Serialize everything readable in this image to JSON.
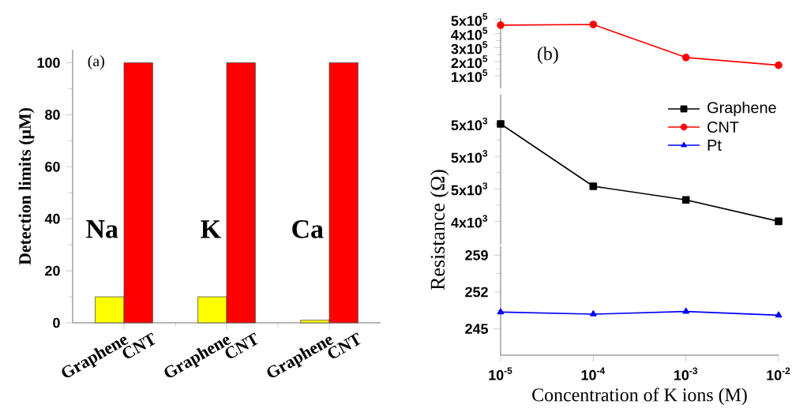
{
  "chart_data": [
    {
      "type": "bar",
      "categories": [
        "Na",
        "K",
        "Ca"
      ],
      "series": [
        {
          "name": "Graphene",
          "color": "#ffff00",
          "values": [
            10,
            10,
            1
          ]
        },
        {
          "name": "CNT",
          "color": "#ff0000",
          "values": [
            100,
            100,
            100
          ]
        }
      ],
      "ylabel": "Detection limits (μM)",
      "ylim": [
        0,
        105
      ],
      "yticks": [
        0,
        20,
        40,
        60,
        80,
        100
      ],
      "annotations": [
        "(a)"
      ]
    },
    {
      "type": "line",
      "x": [
        1e-05,
        0.0001,
        0.001,
        0.01
      ],
      "series": [
        {
          "name": "CNT",
          "color": "#ff0000",
          "values": [
            460000,
            465000,
            230000,
            175000
          ]
        }
      ],
      "marker": "circle",
      "log": "x",
      "xlim": [
        1e-05,
        0.01
      ],
      "ylim": [
        10000,
        510000
      ],
      "yticks": [
        {
          "value": 100000,
          "label": "1x10$^{5}$"
        },
        {
          "value": 200000,
          "label": "2x10$^{5}$"
        },
        {
          "value": 300000,
          "label": "3x10$^{5}$"
        },
        {
          "value": 400000,
          "label": "4x10$^{5}$"
        },
        {
          "value": 500000,
          "label": "5x10$^{5}$"
        }
      ],
      "tick_labels": "y",
      "annotations": [
        "(b)"
      ]
    },
    {
      "type": "line",
      "x": [
        1e-05,
        0.0001,
        0.001,
        0.01
      ],
      "series": [
        {
          "name": "Graphene",
          "color": "#000000",
          "values": [
            5500,
            4540,
            4330,
            4000
          ]
        }
      ],
      "marker": "square",
      "log": "x",
      "xlim": [
        1e-05,
        0.01
      ],
      "ylim": [
        3640,
        5950
      ],
      "yticks": [
        {
          "value": 4000,
          "label": "4x10$^{3}$"
        },
        {
          "value": 4500,
          "label": "5x10$^{3}$"
        },
        {
          "value": 5000,
          "label": "5x10$^{3}$"
        },
        {
          "value": 5500,
          "label": "5x10$^{3}$"
        }
      ],
      "tick_labels": "y",
      "ylabel": "Resistance (Ω)",
      "legend": "top right"
    },
    {
      "type": "line",
      "x": [
        1e-05,
        0.0001,
        0.001,
        0.01
      ],
      "series": [
        {
          "name": "Pt",
          "color": "#0000ff",
          "values": [
            248.2,
            247.8,
            248.3,
            247.6
          ]
        }
      ],
      "marker": "triangle",
      "log": "x",
      "xlim": [
        1e-05,
        0.01
      ],
      "xticks": [
        {
          "value": 1e-05,
          "label": "10$^{-5}$"
        },
        {
          "value": 0.0001,
          "label": "10$^{-4}$"
        },
        {
          "value": 0.001,
          "label": "10$^{-3}$"
        },
        {
          "value": 0.01,
          "label": "10$^{-2}$"
        }
      ],
      "ylim": [
        240,
        260.7
      ],
      "yticks": [
        245,
        252,
        259
      ],
      "xlabel": "Concentration of K ions (M)"
    }
  ]
}
